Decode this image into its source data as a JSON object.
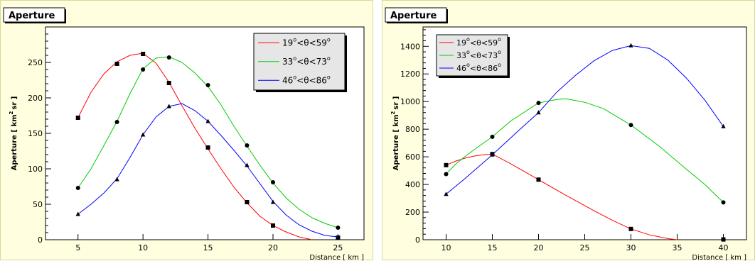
{
  "chart_data": [
    {
      "type": "line",
      "title": "Aperture",
      "xlabel": "Distance [ km ]",
      "ylabel_main": "Aperture [ km",
      "ylabel_sup": "2",
      "ylabel_end": "sr ]",
      "xlim": [
        2.5,
        27.0
      ],
      "ylim": [
        0,
        300
      ],
      "xticks": [
        5,
        10,
        15,
        20,
        25
      ],
      "yticks": [
        0,
        50,
        100,
        150,
        200,
        250
      ],
      "legend_position": "top-right",
      "series": [
        {
          "label_parts": [
            "19",
            "o",
            "<θ<59",
            "o"
          ],
          "color": "#ff0000",
          "marker": "square",
          "x": [
            5,
            8,
            10,
            12,
            15,
            18,
            20,
            25
          ],
          "y": [
            172,
            248,
            262,
            221,
            130,
            53,
            20,
            3
          ],
          "curve": [
            [
              5,
              172
            ],
            [
              6,
              208
            ],
            [
              7,
              234
            ],
            [
              8,
              251
            ],
            [
              9,
              260
            ],
            [
              10,
              263
            ],
            [
              11,
              249
            ],
            [
              12,
              222
            ],
            [
              13,
              189
            ],
            [
              14,
              157
            ],
            [
              15,
              128
            ],
            [
              16,
              100
            ],
            [
              17,
              74
            ],
            [
              18,
              52
            ],
            [
              19,
              33
            ],
            [
              20,
              20
            ],
            [
              21,
              11
            ],
            [
              22,
              4
            ],
            [
              23,
              0
            ]
          ]
        },
        {
          "label_parts": [
            "33",
            "o",
            "<θ<73",
            "o"
          ],
          "color": "#00cc00",
          "marker": "circle",
          "x": [
            5,
            8,
            10,
            12,
            15,
            18,
            20,
            25
          ],
          "y": [
            73,
            166,
            240,
            257,
            218,
            133,
            81,
            17
          ],
          "curve": [
            [
              5,
              73
            ],
            [
              6,
              100
            ],
            [
              7,
              133
            ],
            [
              8,
              167
            ],
            [
              9,
              206
            ],
            [
              10,
              241
            ],
            [
              11,
              256
            ],
            [
              12,
              258
            ],
            [
              13,
              250
            ],
            [
              14,
              235
            ],
            [
              15,
              216
            ],
            [
              16,
              190
            ],
            [
              17,
              160
            ],
            [
              18,
              132
            ],
            [
              19,
              105
            ],
            [
              20,
              80
            ],
            [
              21,
              59
            ],
            [
              22,
              43
            ],
            [
              23,
              31
            ],
            [
              24,
              23
            ],
            [
              25,
              17
            ]
          ]
        },
        {
          "label_parts": [
            "46",
            "o",
            "<θ<86",
            "o"
          ],
          "color": "#0000ff",
          "marker": "triangle",
          "x": [
            5,
            8,
            10,
            12,
            15,
            18,
            20,
            25
          ],
          "y": [
            36,
            85,
            148,
            188,
            167,
            105,
            53,
            2
          ],
          "curve": [
            [
              5,
              36
            ],
            [
              6,
              50
            ],
            [
              7,
              66
            ],
            [
              8,
              86
            ],
            [
              9,
              116
            ],
            [
              10,
              148
            ],
            [
              11,
              173
            ],
            [
              12,
              188
            ],
            [
              13,
              192
            ],
            [
              14,
              182
            ],
            [
              15,
              167
            ],
            [
              16,
              147
            ],
            [
              17,
              126
            ],
            [
              18,
              104
            ],
            [
              19,
              79
            ],
            [
              20,
              54
            ],
            [
              21,
              35
            ],
            [
              22,
              21
            ],
            [
              23,
              12
            ],
            [
              24,
              6
            ],
            [
              25,
              4
            ]
          ]
        }
      ]
    },
    {
      "type": "line",
      "title": "Aperture",
      "xlabel": "Distance [ km ]",
      "ylabel_main": "Aperture [ km",
      "ylabel_sup": "2",
      "ylabel_end": "sr ]",
      "xlim": [
        7.5,
        42.5
      ],
      "ylim": [
        0,
        1540
      ],
      "xticks": [
        10,
        15,
        20,
        25,
        30,
        35,
        40
      ],
      "yticks": [
        0,
        200,
        400,
        600,
        800,
        1000,
        1200,
        1400
      ],
      "legend_position": "top-left",
      "series": [
        {
          "label_parts": [
            "19",
            "o",
            "<θ<59",
            "o"
          ],
          "color": "#ff0000",
          "marker": "square",
          "x": [
            10,
            15,
            20,
            30,
            40
          ],
          "y": [
            540,
            620,
            435,
            78,
            2
          ],
          "curve": [
            [
              10,
              540
            ],
            [
              11,
              568
            ],
            [
              12,
              590
            ],
            [
              13,
              605
            ],
            [
              14,
              615
            ],
            [
              15,
              620
            ],
            [
              17,
              550
            ],
            [
              20,
              435
            ],
            [
              23,
              320
            ],
            [
              26,
              210
            ],
            [
              28,
              140
            ],
            [
              30,
              78
            ],
            [
              32,
              35
            ],
            [
              34,
              8
            ],
            [
              35,
              0
            ]
          ]
        },
        {
          "label_parts": [
            "33",
            "o",
            "<θ<73",
            "o"
          ],
          "color": "#00cc00",
          "marker": "circle",
          "x": [
            10,
            15,
            20,
            30,
            40
          ],
          "y": [
            475,
            745,
            990,
            830,
            270
          ],
          "curve": [
            [
              10,
              475
            ],
            [
              11,
              545
            ],
            [
              12,
              600
            ],
            [
              13,
              650
            ],
            [
              15,
              745
            ],
            [
              17,
              860
            ],
            [
              20,
              990
            ],
            [
              22,
              1015
            ],
            [
              23,
              1020
            ],
            [
              25,
              995
            ],
            [
              27,
              950
            ],
            [
              30,
              830
            ],
            [
              33,
              680
            ],
            [
              36,
              510
            ],
            [
              38,
              400
            ],
            [
              40,
              270
            ]
          ]
        },
        {
          "label_parts": [
            "46",
            "o",
            "<θ<86",
            "o"
          ],
          "color": "#0000ff",
          "marker": "triangle",
          "x": [
            10,
            15,
            20,
            30,
            40
          ],
          "y": [
            330,
            615,
            920,
            1405,
            820
          ],
          "curve": [
            [
              10,
              330
            ],
            [
              12,
              440
            ],
            [
              15,
              615
            ],
            [
              18,
              800
            ],
            [
              20,
              920
            ],
            [
              22,
              1070
            ],
            [
              24,
              1190
            ],
            [
              26,
              1295
            ],
            [
              28,
              1370
            ],
            [
              30,
              1405
            ],
            [
              32,
              1385
            ],
            [
              34,
              1300
            ],
            [
              36,
              1170
            ],
            [
              38,
              1010
            ],
            [
              40,
              820
            ]
          ]
        }
      ]
    }
  ]
}
